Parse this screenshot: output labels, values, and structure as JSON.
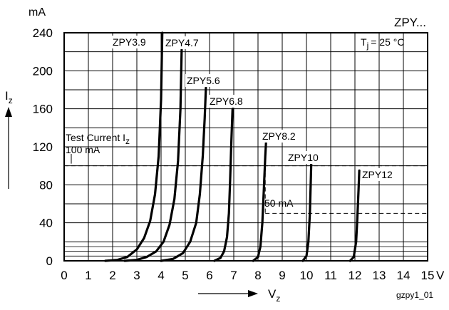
{
  "chart_data": {
    "type": "line",
    "title": "ZPY...",
    "condition": "T",
    "condition_sub": "j",
    "condition_value": "= 25 °C",
    "y_unit": "mA",
    "x_unit": "V",
    "ylabel": "I",
    "ylabel_sub": "z",
    "xlabel": "V",
    "xlabel_sub": "z",
    "figure_id": "gzpy1_01",
    "xlim": [
      0,
      15
    ],
    "ylim": [
      0,
      240
    ],
    "x_ticks": [
      0,
      1,
      2,
      3,
      4,
      5,
      6,
      7,
      8,
      9,
      10,
      11,
      12,
      13,
      14,
      15
    ],
    "y_ticks": [
      0,
      40,
      80,
      120,
      160,
      200,
      240
    ],
    "grid": true,
    "annotations": {
      "test_current_line1": "Test Current I",
      "test_current_sub": "z",
      "test_current_line2": "100 mA",
      "test_current_value": 100,
      "low_current_label": "50 mA",
      "low_current_value": 50
    },
    "series": [
      {
        "name": "ZPY3.9",
        "x": [
          1.7,
          2.2,
          2.6,
          3.0,
          3.3,
          3.55,
          3.75,
          3.9,
          4.0,
          4.05
        ],
        "y": [
          0,
          1,
          4,
          12,
          24,
          42,
          70,
          110,
          170,
          240
        ]
      },
      {
        "name": "ZPY4.7",
        "x": [
          2.5,
          3.0,
          3.4,
          3.8,
          4.1,
          4.35,
          4.55,
          4.7,
          4.8,
          4.85
        ],
        "y": [
          0,
          1,
          4,
          10,
          20,
          38,
          65,
          105,
          160,
          222
        ]
      },
      {
        "name": "ZPY5.6",
        "x": [
          4.0,
          4.5,
          4.9,
          5.2,
          5.45,
          5.6,
          5.72,
          5.8,
          5.85
        ],
        "y": [
          0,
          2,
          8,
          20,
          40,
          70,
          110,
          150,
          182
        ]
      },
      {
        "name": "ZPY6.8",
        "x": [
          6.2,
          6.45,
          6.6,
          6.72,
          6.8,
          6.85,
          6.9,
          6.95
        ],
        "y": [
          0,
          3,
          10,
          25,
          50,
          85,
          125,
          160
        ]
      },
      {
        "name": "ZPY8.2",
        "x": [
          7.8,
          8.0,
          8.1,
          8.18,
          8.24,
          8.3,
          8.35
        ],
        "y": [
          0,
          4,
          15,
          40,
          75,
          110,
          133
        ]
      },
      {
        "name": "ZPY10",
        "x": [
          9.85,
          10.0,
          10.08,
          10.14,
          10.18,
          10.2
        ],
        "y": [
          0,
          5,
          20,
          50,
          85,
          105
        ]
      },
      {
        "name": "ZPY12",
        "x": [
          11.8,
          11.95,
          12.05,
          12.1,
          12.15,
          12.18
        ],
        "y": [
          0,
          4,
          20,
          45,
          75,
          95
        ]
      }
    ]
  }
}
